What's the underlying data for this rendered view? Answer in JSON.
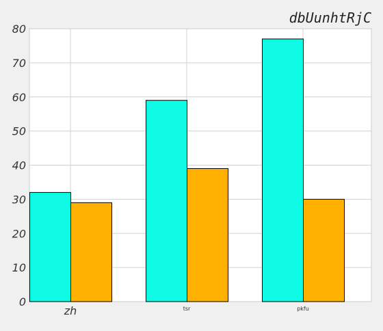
{
  "chart_data": {
    "type": "bar",
    "title": "dbUunhtRjC",
    "xlabel": "",
    "ylabel": "",
    "categories": [
      "zh",
      "tsr",
      "pkfu"
    ],
    "series": [
      {
        "values": [
          32,
          59,
          77
        ],
        "color": "#10fbe6"
      },
      {
        "values": [
          29,
          39,
          30
        ],
        "color": "#ffb000"
      }
    ],
    "ylim": [
      0,
      80
    ],
    "yticks": [
      "0",
      "10",
      "20",
      "30",
      "40",
      "50",
      "60",
      "70",
      "80"
    ],
    "grid": true,
    "legend": "none",
    "colors": {
      "plot_background": "#ffffff",
      "page_background": "#f0f0f0",
      "grid": "#d0d0d0",
      "bar_edge": "#000000"
    }
  }
}
